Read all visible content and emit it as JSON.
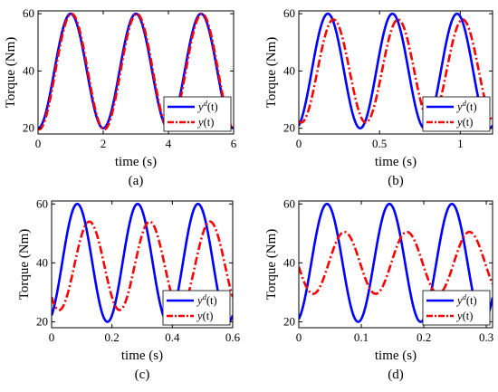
{
  "chart_data": [
    {
      "type": "line",
      "panel_label": "(a)",
      "xlabel": "time (s)",
      "ylabel": "Torque (Nm)",
      "xlim": [
        0,
        6
      ],
      "ylim": [
        18,
        61
      ],
      "xticks": [
        0,
        2,
        4,
        6
      ],
      "xtick_labels": [
        "0",
        "2",
        "4",
        "6"
      ],
      "yticks": [
        20,
        40,
        60
      ],
      "ytick_labels": [
        "20",
        "40",
        "60"
      ],
      "grid": false,
      "legend_position": "lower-right",
      "series": [
        {
          "name": "y^d(t)",
          "legend_label": {
            "base": "y",
            "sup": "d",
            "tail": "(t)"
          },
          "color": "#0000ff",
          "style": "solid",
          "model": {
            "offset": 40,
            "amplitude": 20,
            "period": 2,
            "peak_time": 1
          }
        },
        {
          "name": "y(t)",
          "legend_label": {
            "base": "y",
            "sup": "",
            "tail": "(t)"
          },
          "color": "#ff0000",
          "style": "dash-dot",
          "model": {
            "offset": 39.8,
            "amplitude": 20.2,
            "period": 2,
            "peak_time": 1.03
          }
        }
      ]
    },
    {
      "type": "line",
      "panel_label": "(b)",
      "xlabel": "time (s)",
      "ylabel": "Torque (Nm)",
      "xlim": [
        0,
        1.2
      ],
      "ylim": [
        18,
        61
      ],
      "xticks": [
        0,
        0.5,
        1
      ],
      "xtick_labels": [
        "0",
        "0.5",
        "1"
      ],
      "yticks": [
        20,
        40,
        60
      ],
      "ytick_labels": [
        "20",
        "40",
        "60"
      ],
      "grid": false,
      "legend_position": "lower-right",
      "series": [
        {
          "name": "y^d(t)",
          "legend_label": {
            "base": "y",
            "sup": "d",
            "tail": "(t)"
          },
          "color": "#0000ff",
          "style": "solid",
          "model": {
            "offset": 40,
            "amplitude": 20,
            "period": 0.4,
            "peak_time": 0.18
          }
        },
        {
          "name": "y(t)",
          "legend_label": {
            "base": "y",
            "sup": "",
            "tail": "(t)"
          },
          "color": "#ff0000",
          "style": "dash-dot",
          "model": {
            "offset": 40,
            "amplitude": 18,
            "period": 0.4,
            "peak_time": 0.215
          }
        }
      ]
    },
    {
      "type": "line",
      "panel_label": "(c)",
      "xlabel": "time (s)",
      "ylabel": "Torque (Nm)",
      "xlim": [
        0,
        0.6
      ],
      "ylim": [
        18,
        61
      ],
      "xticks": [
        0,
        0.2,
        0.4,
        0.6
      ],
      "xtick_labels": [
        "0",
        "0.2",
        "0.4",
        "0.6"
      ],
      "yticks": [
        20,
        40,
        60
      ],
      "ytick_labels": [
        "20",
        "40",
        "60"
      ],
      "grid": false,
      "legend_position": "lower-right",
      "series": [
        {
          "name": "y^d(t)",
          "legend_label": {
            "base": "y",
            "sup": "d",
            "tail": "(t)"
          },
          "color": "#0000ff",
          "style": "solid",
          "model": {
            "offset": 40,
            "amplitude": 20,
            "period": 0.2,
            "peak_time": 0.085
          }
        },
        {
          "name": "y(t)",
          "legend_label": {
            "base": "y",
            "sup": "",
            "tail": "(t)"
          },
          "color": "#ff0000",
          "style": "dash-dot",
          "model": {
            "offset": 39,
            "amplitude": 15,
            "period": 0.2,
            "peak_time": 0.125
          }
        }
      ]
    },
    {
      "type": "line",
      "panel_label": "(d)",
      "xlabel": "time (s)",
      "ylabel": "Torque (Nm)",
      "xlim": [
        0,
        0.31
      ],
      "ylim": [
        18,
        61
      ],
      "xticks": [
        0,
        0.1,
        0.2,
        0.3
      ],
      "xtick_labels": [
        "0",
        "0.1",
        "0.2",
        "0.3"
      ],
      "yticks": [
        20,
        40,
        60
      ],
      "ytick_labels": [
        "20",
        "40",
        "60"
      ],
      "grid": false,
      "legend_position": "lower-right",
      "series": [
        {
          "name": "y^d(t)",
          "legend_label": {
            "base": "y",
            "sup": "d",
            "tail": "(t)"
          },
          "color": "#0000ff",
          "style": "solid",
          "model": {
            "offset": 40,
            "amplitude": 20,
            "period": 0.1,
            "peak_time": 0.045
          }
        },
        {
          "name": "y(t)",
          "legend_label": {
            "base": "y",
            "sup": "",
            "tail": "(t)"
          },
          "color": "#ff0000",
          "style": "dash-dot",
          "model": {
            "offset": 40,
            "amplitude": 10.5,
            "period": 0.1,
            "peak_time": 0.073
          }
        }
      ]
    }
  ]
}
